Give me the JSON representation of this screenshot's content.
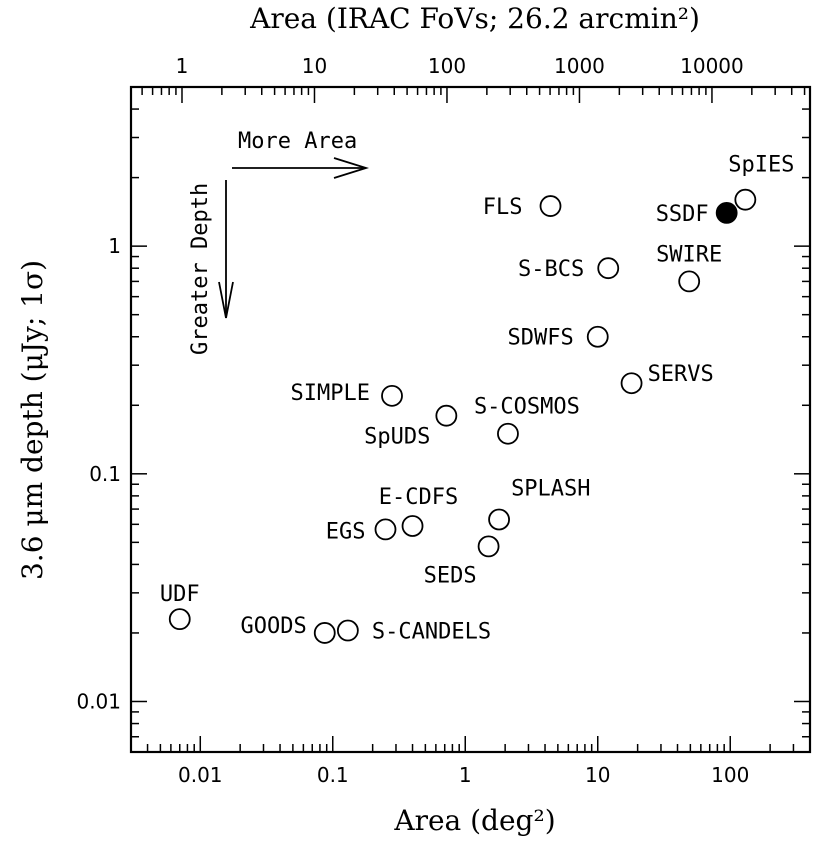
{
  "chart_data": {
    "type": "scatter",
    "xlabel": "Area (deg²)",
    "ylabel": "3.6 μm depth (μJy; 1σ)",
    "x2label": "Area (IRAC FoVs; 26.2 arcmin²)",
    "x_scale": "log",
    "y_scale": "log",
    "xlim": [
      0.003,
      400
    ],
    "ylim": [
      0.006,
      5
    ],
    "x_ticks": [
      {
        "value": 0.01,
        "label": "0.01"
      },
      {
        "value": 0.1,
        "label": "0.1"
      },
      {
        "value": 1,
        "label": "1"
      },
      {
        "value": 10,
        "label": "10"
      },
      {
        "value": 100,
        "label": "100"
      }
    ],
    "y_ticks": [
      {
        "value": 0.01,
        "label": "0.01"
      },
      {
        "value": 0.1,
        "label": "0.1"
      },
      {
        "value": 1,
        "label": "1"
      }
    ],
    "top_ticks": [
      {
        "value": 1,
        "label": "1"
      },
      {
        "value": 10,
        "label": "10"
      },
      {
        "value": 100,
        "label": "100"
      },
      {
        "value": 1000,
        "label": "1000"
      },
      {
        "value": 10000,
        "label": "10000"
      }
    ],
    "top_per_deg2": 137.4,
    "annotations": {
      "more_area": "More Area",
      "greater_depth": "Greater Depth"
    },
    "points": [
      {
        "name": "UDF",
        "x": 0.007,
        "y": 0.023,
        "filled": false,
        "label_pos": "above"
      },
      {
        "name": "GOODS",
        "x": 0.087,
        "y": 0.02,
        "filled": false,
        "label_pos": "left"
      },
      {
        "name": "S-CANDELS",
        "x": 0.13,
        "y": 0.0205,
        "filled": false,
        "label_pos": "right"
      },
      {
        "name": "EGS",
        "x": 0.25,
        "y": 0.057,
        "filled": false,
        "label_pos": "left"
      },
      {
        "name": "E-CDFS",
        "x": 0.4,
        "y": 0.059,
        "filled": false,
        "label_pos": "above"
      },
      {
        "name": "SEDS",
        "x": 1.5,
        "y": 0.048,
        "filled": false,
        "label_pos": "below-left"
      },
      {
        "name": "SPLASH",
        "x": 1.8,
        "y": 0.063,
        "filled": false,
        "label_pos": "above-right"
      },
      {
        "name": "SIMPLE",
        "x": 0.28,
        "y": 0.22,
        "filled": false,
        "label_pos": "left"
      },
      {
        "name": "SpUDS",
        "x": 0.72,
        "y": 0.18,
        "filled": false,
        "label_pos": "below-left"
      },
      {
        "name": "S-COSMOS",
        "x": 2.1,
        "y": 0.15,
        "filled": false,
        "label_pos": "above-right"
      },
      {
        "name": "SERVS",
        "x": 18,
        "y": 0.25,
        "filled": false,
        "label_pos": "right"
      },
      {
        "name": "SDWFS",
        "x": 10,
        "y": 0.4,
        "filled": false,
        "label_pos": "left"
      },
      {
        "name": "S-BCS",
        "x": 12,
        "y": 0.8,
        "filled": false,
        "label_pos": "left"
      },
      {
        "name": "SWIRE",
        "x": 49,
        "y": 0.7,
        "filled": false,
        "label_pos": "above"
      },
      {
        "name": "FLS",
        "x": 4.4,
        "y": 1.5,
        "filled": false,
        "label_pos": "left"
      },
      {
        "name": "SSDF",
        "x": 94,
        "y": 1.4,
        "filled": true,
        "label_pos": "left"
      },
      {
        "name": "SpIES",
        "x": 130,
        "y": 1.6,
        "filled": false,
        "label_pos": "above"
      }
    ]
  }
}
